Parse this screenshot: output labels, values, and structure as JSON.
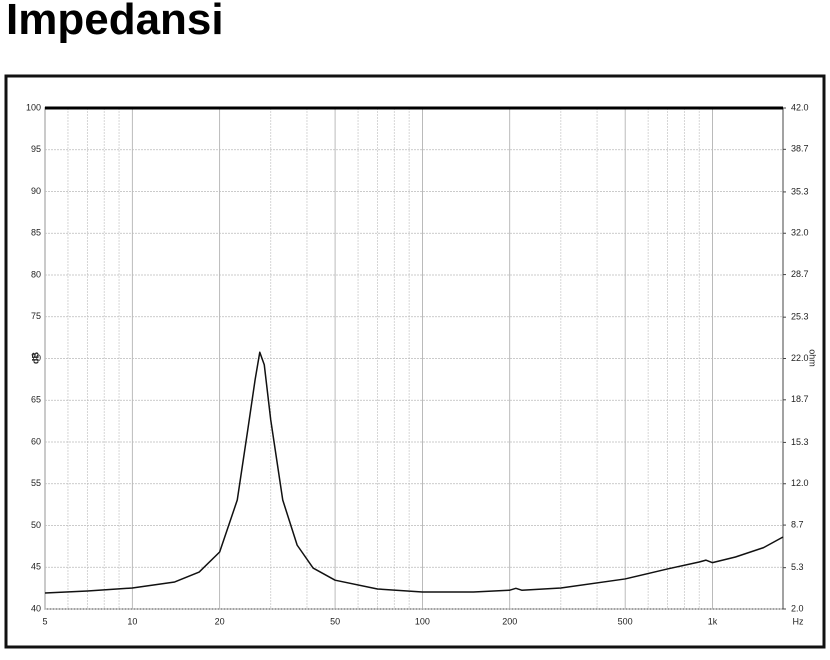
{
  "chart_data": {
    "type": "line",
    "title": "Impedansi",
    "xlabel": "Hz",
    "ylabel": "dB",
    "y2label": "ohm",
    "xscale": "log",
    "grid": true,
    "xlim": [
      5,
      1750
    ],
    "xticks": [
      5,
      10,
      20,
      50,
      100,
      200,
      500,
      {
        "value": 1000,
        "label": "1k"
      }
    ],
    "xgrid": [
      6,
      7,
      8,
      9,
      30,
      40,
      60,
      70,
      80,
      90,
      300,
      400,
      600,
      700,
      800,
      900
    ],
    "ylim": [
      40,
      100
    ],
    "yticks": [
      40,
      45,
      50,
      55,
      60,
      65,
      70,
      75,
      80,
      85,
      90,
      95,
      100
    ],
    "y2lim": [
      2,
      42
    ],
    "y2ticks": [
      {
        "value": 2,
        "label": "2.0"
      },
      5.3,
      8.7,
      {
        "value": 12,
        "label": "12.0"
      },
      15.3,
      18.7,
      {
        "value": 22,
        "label": "22.0"
      },
      25.3,
      28.7,
      {
        "value": 32,
        "label": "32.0"
      },
      35.3,
      38.7,
      {
        "value": 42,
        "label": "42.0"
      }
    ],
    "x": [
      5,
      7,
      10,
      14,
      17,
      20,
      23,
      25,
      26.5,
      27.5,
      28.5,
      30,
      33,
      37,
      42,
      50,
      70,
      100,
      150,
      200,
      210,
      220,
      300,
      500,
      700,
      900,
      950,
      1000,
      1200,
      1500,
      1750
    ],
    "series": [
      {
        "color": "#111111",
        "axis": "y2",
        "values": [
          3.28,
          3.44,
          3.68,
          4.16,
          4.95,
          6.55,
          10.7,
          16.3,
          20.3,
          22.5,
          21.5,
          17.1,
          10.7,
          7.1,
          5.27,
          4.3,
          3.6,
          3.36,
          3.36,
          3.5,
          3.65,
          3.5,
          3.68,
          4.4,
          5.2,
          5.75,
          5.9,
          5.7,
          6.15,
          6.9,
          7.75
        ]
      }
    ]
  }
}
